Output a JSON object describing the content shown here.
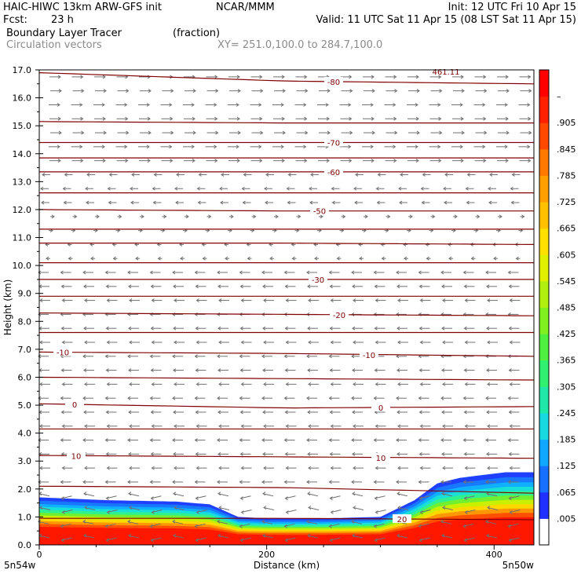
{
  "header": {
    "model": "HAIC-HIWC 13km ARW-GFS init",
    "org": "NCAR/MMM",
    "init": "Init: 12 UTC Fri 10 Apr 15",
    "fcst_label": "Fcst:",
    "fcst_value": "23 h",
    "valid": "Valid: 11 UTC Sat 11 Apr 15 (08 LST Sat 11 Apr 15)",
    "field": "Boundary Layer Tracer",
    "field_units": "(fraction)",
    "vectors": "Circulation vectors",
    "xy": "XY= 251.0,100.0 to 284.7,100.0"
  },
  "chart_data": {
    "type": "heatmap",
    "title": "Boundary Layer Tracer",
    "units": "(fraction)",
    "xlabel": "Distance (km)",
    "ylabel": "Height (km)",
    "xlim": [
      0,
      435
    ],
    "ylim": [
      0,
      17
    ],
    "xticks": [
      0,
      200,
      400
    ],
    "yticks": [
      "0.0",
      "1.0",
      "2.0",
      "3.0",
      "4.0",
      "5.0",
      "6.0",
      "7.0",
      "8.0",
      "9.0",
      "10.0",
      "11.0",
      "12.0",
      "13.0",
      "14.0",
      "15.0",
      "16.0",
      "17.0"
    ],
    "x_endpoint_labels": [
      "5n54w",
      "5n50w"
    ],
    "tracer_top_km": {
      "x": [
        0,
        60,
        120,
        150,
        175,
        200,
        250,
        300,
        330,
        350,
        370,
        390,
        410,
        435
      ],
      "top": [
        1.7,
        1.6,
        1.55,
        1.45,
        1.0,
        0.95,
        0.95,
        1.0,
        1.6,
        2.2,
        2.4,
        2.5,
        2.6,
        2.6
      ]
    },
    "colorbar": {
      "labels": [
        ".005",
        ".065",
        ".125",
        ".185",
        ".245",
        ".305",
        ".365",
        ".425",
        ".485",
        ".545",
        ".605",
        ".665",
        ".725",
        ".785",
        ".845",
        ".905",
        "–"
      ],
      "colors": [
        "#ffffff",
        "#2030ff",
        "#1870ff",
        "#10a8ff",
        "#18d8e0",
        "#20e8a8",
        "#30f070",
        "#50f040",
        "#80f020",
        "#b0f010",
        "#e0f000",
        "#ffe000",
        "#ffc000",
        "#ffa000",
        "#ff7800",
        "#ff4800",
        "#ff2000",
        "#ff0000"
      ]
    },
    "contours": {
      "color": "#800000",
      "levels": [
        {
          "label": "-80",
          "y": [
            16.9,
            16.6,
            16.5
          ]
        },
        {
          "label": "",
          "y": [
            15.15,
            15.1,
            15.1
          ]
        },
        {
          "label": "-70",
          "y": [
            14.4,
            14.4,
            14.4
          ]
        },
        {
          "label": "",
          "y": [
            13.85,
            13.85,
            13.85
          ]
        },
        {
          "label": "-60",
          "y": [
            13.35,
            13.35,
            13.35
          ]
        },
        {
          "label": "",
          "y": [
            12.6,
            12.6,
            12.6
          ]
        },
        {
          "label": "-50",
          "y": [
            12.0,
            11.95,
            11.95
          ]
        },
        {
          "label": "",
          "y": [
            11.3,
            11.3,
            11.3
          ]
        },
        {
          "label": "",
          "y": [
            10.8,
            10.8,
            10.75
          ]
        },
        {
          "label": "",
          "y": [
            10.1,
            10.1,
            10.1
          ]
        },
        {
          "label": "-30",
          "y": [
            9.5,
            9.5,
            9.5
          ]
        },
        {
          "label": "",
          "y": [
            8.9,
            8.9,
            8.9
          ]
        },
        {
          "label": "-20",
          "y": [
            8.3,
            8.25,
            8.2
          ]
        },
        {
          "label": "",
          "y": [
            7.6,
            7.6,
            7.6
          ]
        },
        {
          "label": "-10",
          "y": [
            6.9,
            6.85,
            6.75
          ]
        },
        {
          "label": "",
          "y": [
            6.0,
            5.95,
            5.9
          ]
        },
        {
          "label": "0",
          "y": [
            5.05,
            4.9,
            4.95
          ]
        },
        {
          "label": "",
          "y": [
            4.15,
            4.15,
            4.15
          ]
        },
        {
          "label": "10",
          "y": [
            3.2,
            3.15,
            3.1
          ]
        },
        {
          "label": "",
          "y": [
            2.1,
            2.05,
            1.85
          ]
        },
        {
          "label": "20",
          "y": [
            0.95,
            0.95,
            0.9
          ]
        }
      ]
    },
    "extra_label": "461.11"
  }
}
